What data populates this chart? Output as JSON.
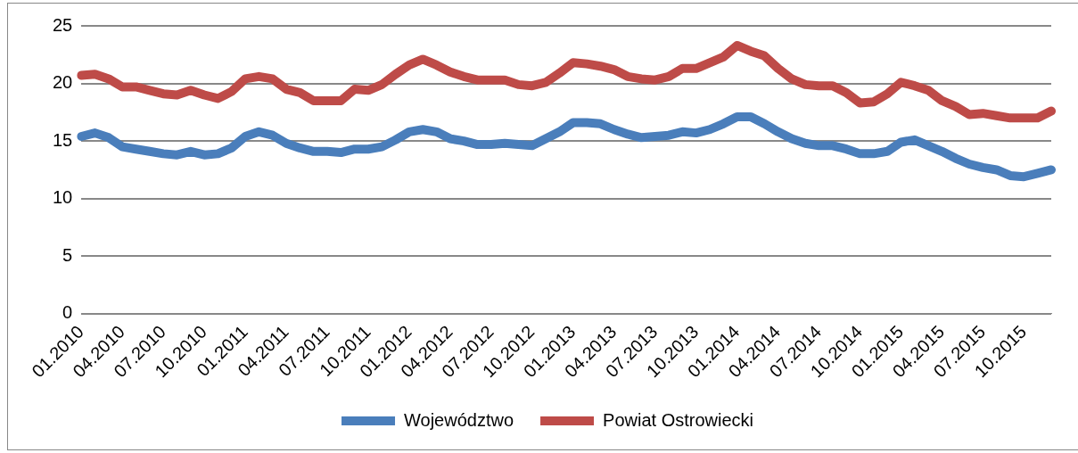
{
  "chart_data": {
    "type": "line",
    "categories": [
      "01.2010",
      null,
      null,
      "04.2010",
      null,
      null,
      "07.2010",
      null,
      null,
      "10.2010",
      null,
      null,
      "01.2011",
      null,
      null,
      "04.2011",
      null,
      null,
      "07.2011",
      null,
      null,
      "10.2011",
      null,
      null,
      "01.2012",
      null,
      null,
      "04.2012",
      null,
      null,
      "07.2012",
      null,
      null,
      "10.2012",
      null,
      null,
      "01.2013",
      null,
      null,
      "04.2013",
      null,
      null,
      "07.2013",
      null,
      null,
      "10.2013",
      null,
      null,
      "01.2014",
      null,
      null,
      "04.2014",
      null,
      null,
      "07.2014",
      null,
      null,
      "10.2014",
      null,
      null,
      "01.2015",
      null,
      null,
      "04.2015",
      null,
      null,
      "07.2015",
      null,
      null,
      "10.2015",
      null,
      null
    ],
    "series": [
      {
        "name": "Województwo",
        "color": "#4a7ebb",
        "values": [
          15.4,
          15.7,
          15.3,
          14.5,
          14.3,
          14.1,
          13.9,
          13.8,
          14.1,
          13.8,
          13.9,
          14.4,
          15.4,
          15.8,
          15.5,
          14.8,
          14.4,
          14.1,
          14.1,
          14.0,
          14.3,
          14.3,
          14.5,
          15.1,
          15.8,
          16.0,
          15.8,
          15.2,
          15.0,
          14.7,
          14.7,
          14.8,
          14.7,
          14.6,
          15.2,
          15.8,
          16.6,
          16.6,
          16.5,
          16.0,
          15.6,
          15.3,
          15.4,
          15.5,
          15.8,
          15.7,
          16.0,
          16.5,
          17.1,
          17.1,
          16.5,
          15.8,
          15.2,
          14.8,
          14.6,
          14.6,
          14.3,
          13.9,
          13.9,
          14.1,
          14.9,
          15.1,
          14.6,
          14.1,
          13.5,
          13.0,
          12.7,
          12.5,
          12.0,
          11.9,
          12.2,
          12.5
        ]
      },
      {
        "name": "Powiat Ostrowiecki",
        "color": "#be4b48",
        "values": [
          20.7,
          20.8,
          20.4,
          19.7,
          19.7,
          19.4,
          19.1,
          19.0,
          19.4,
          19.0,
          18.7,
          19.3,
          20.4,
          20.6,
          20.4,
          19.5,
          19.2,
          18.5,
          18.5,
          18.5,
          19.5,
          19.4,
          19.9,
          20.8,
          21.6,
          22.1,
          21.6,
          21.0,
          20.6,
          20.3,
          20.3,
          20.3,
          19.9,
          19.8,
          20.1,
          20.9,
          21.8,
          21.7,
          21.5,
          21.2,
          20.6,
          20.4,
          20.3,
          20.6,
          21.3,
          21.3,
          21.8,
          22.3,
          23.3,
          22.8,
          22.4,
          21.3,
          20.4,
          19.9,
          19.8,
          19.8,
          19.2,
          18.3,
          18.4,
          19.1,
          20.1,
          19.8,
          19.4,
          18.5,
          18.0,
          17.3,
          17.4,
          17.2,
          17.0,
          17.0,
          17.0,
          17.6
        ]
      }
    ],
    "ylim": [
      0,
      25
    ],
    "yticks": [
      0,
      5,
      10,
      15,
      20,
      25
    ],
    "grid": "y",
    "legend": "bottom",
    "marker": "none",
    "line_style": "solid"
  }
}
